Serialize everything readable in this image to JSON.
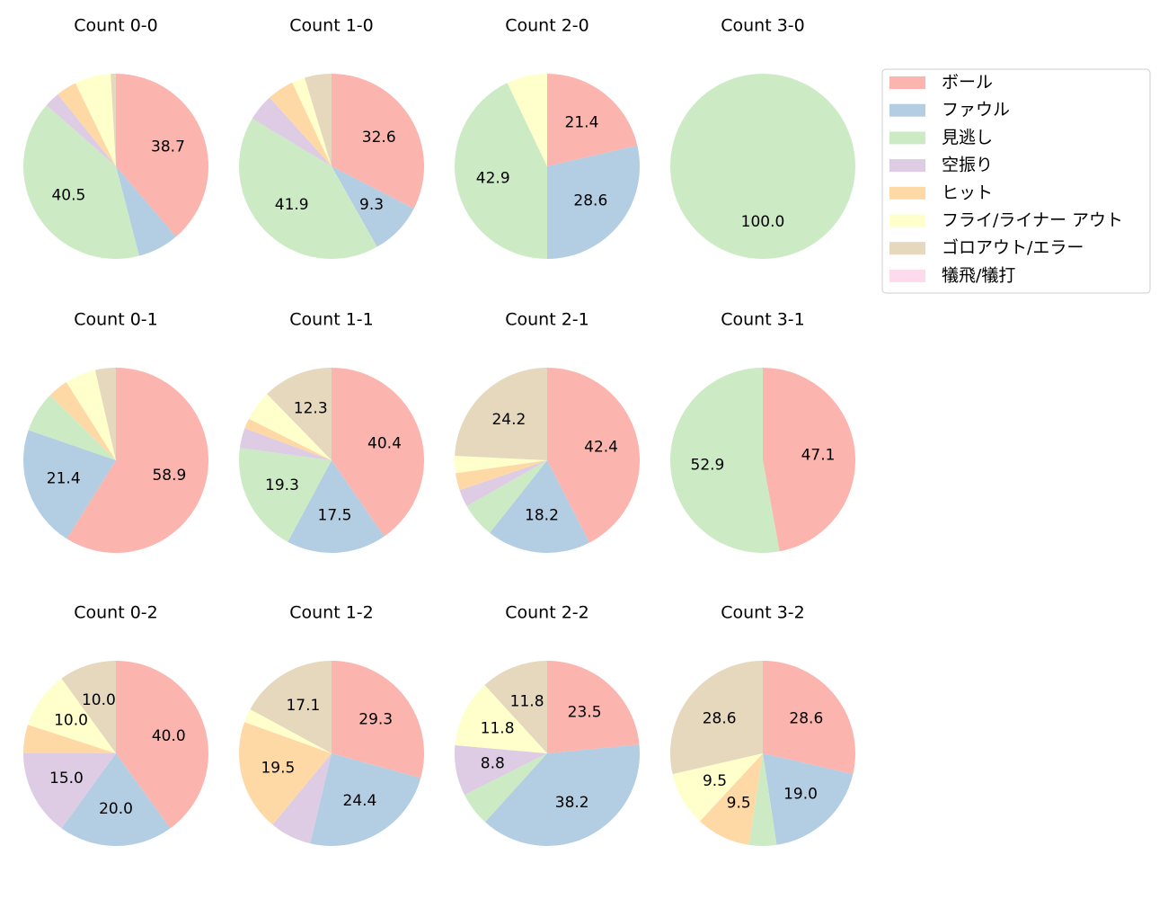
{
  "categories": [
    "ボール",
    "ファウル",
    "見逃し",
    "空振り",
    "ヒット",
    "フライ/ライナー アウト",
    "ゴロアウト/エラー",
    "犠飛/犠打"
  ],
  "colors": [
    "#fbb4ae",
    "#b3cde3",
    "#ccebc5",
    "#decbe4",
    "#fed9a6",
    "#ffffcc",
    "#e5d8bd",
    "#fddaec"
  ],
  "chart_data": [
    {
      "type": "pie",
      "title": "Count 0-0",
      "values": [
        38.7,
        7.2,
        40.5,
        2.7,
        3.6,
        6.3,
        0.9,
        0
      ],
      "value_labels": [
        "38.7",
        null,
        "40.5",
        null,
        null,
        null,
        null,
        null
      ]
    },
    {
      "type": "pie",
      "title": "Count 1-0",
      "values": [
        32.6,
        9.3,
        41.9,
        4.7,
        4.7,
        2.3,
        4.7,
        0
      ],
      "value_labels": [
        "32.6",
        "9.3",
        "41.9",
        null,
        null,
        null,
        null,
        null
      ]
    },
    {
      "type": "pie",
      "title": "Count 2-0",
      "values": [
        21.4,
        28.6,
        42.9,
        0,
        0,
        7.1,
        0,
        0
      ],
      "value_labels": [
        "21.4",
        "28.6",
        "42.9",
        null,
        null,
        null,
        null,
        null
      ]
    },
    {
      "type": "pie",
      "title": "Count 3-0",
      "values": [
        0,
        0,
        100,
        0,
        0,
        0,
        0,
        0
      ],
      "value_labels": [
        null,
        null,
        "100.0",
        null,
        null,
        null,
        null,
        null
      ]
    },
    {
      "type": "pie",
      "title": "Count 0-1",
      "values": [
        58.9,
        21.4,
        7.1,
        0,
        3.6,
        5.4,
        3.6,
        0
      ],
      "value_labels": [
        "58.9",
        "21.4",
        null,
        null,
        null,
        null,
        null,
        null
      ]
    },
    {
      "type": "pie",
      "title": "Count 1-1",
      "values": [
        40.4,
        17.5,
        19.3,
        3.5,
        1.8,
        5.3,
        12.3,
        0
      ],
      "value_labels": [
        "40.4",
        "17.5",
        "19.3",
        null,
        null,
        null,
        "12.3",
        null
      ]
    },
    {
      "type": "pie",
      "title": "Count 2-1",
      "values": [
        42.4,
        18.2,
        6.1,
        3.0,
        3.0,
        3.0,
        24.2,
        0
      ],
      "value_labels": [
        "42.4",
        "18.2",
        null,
        null,
        null,
        null,
        "24.2",
        null
      ]
    },
    {
      "type": "pie",
      "title": "Count 3-1",
      "values": [
        47.1,
        0,
        52.9,
        0,
        0,
        0,
        0,
        0
      ],
      "value_labels": [
        "47.1",
        null,
        "52.9",
        null,
        null,
        null,
        null,
        null
      ]
    },
    {
      "type": "pie",
      "title": "Count 0-2",
      "values": [
        40.0,
        20.0,
        0,
        15.0,
        5.0,
        10.0,
        10.0,
        0
      ],
      "value_labels": [
        "40.0",
        "20.0",
        null,
        "15.0",
        null,
        "10.0",
        "10.0",
        null
      ]
    },
    {
      "type": "pie",
      "title": "Count 1-2",
      "values": [
        29.3,
        24.4,
        0,
        7.3,
        19.5,
        2.4,
        17.1,
        0
      ],
      "value_labels": [
        "29.3",
        "24.4",
        null,
        null,
        "19.5",
        null,
        "17.1",
        null
      ]
    },
    {
      "type": "pie",
      "title": "Count 2-2",
      "values": [
        23.5,
        38.2,
        5.9,
        8.8,
        0,
        11.8,
        11.8,
        0
      ],
      "value_labels": [
        "23.5",
        "38.2",
        null,
        "8.8",
        null,
        "11.8",
        "11.8",
        null
      ]
    },
    {
      "type": "pie",
      "title": "Count 3-2",
      "values": [
        28.6,
        19.0,
        4.8,
        0,
        9.5,
        9.5,
        28.6,
        0
      ],
      "value_labels": [
        "28.6",
        "19.0",
        null,
        null,
        "9.5",
        "9.5",
        "28.6",
        null
      ]
    }
  ]
}
